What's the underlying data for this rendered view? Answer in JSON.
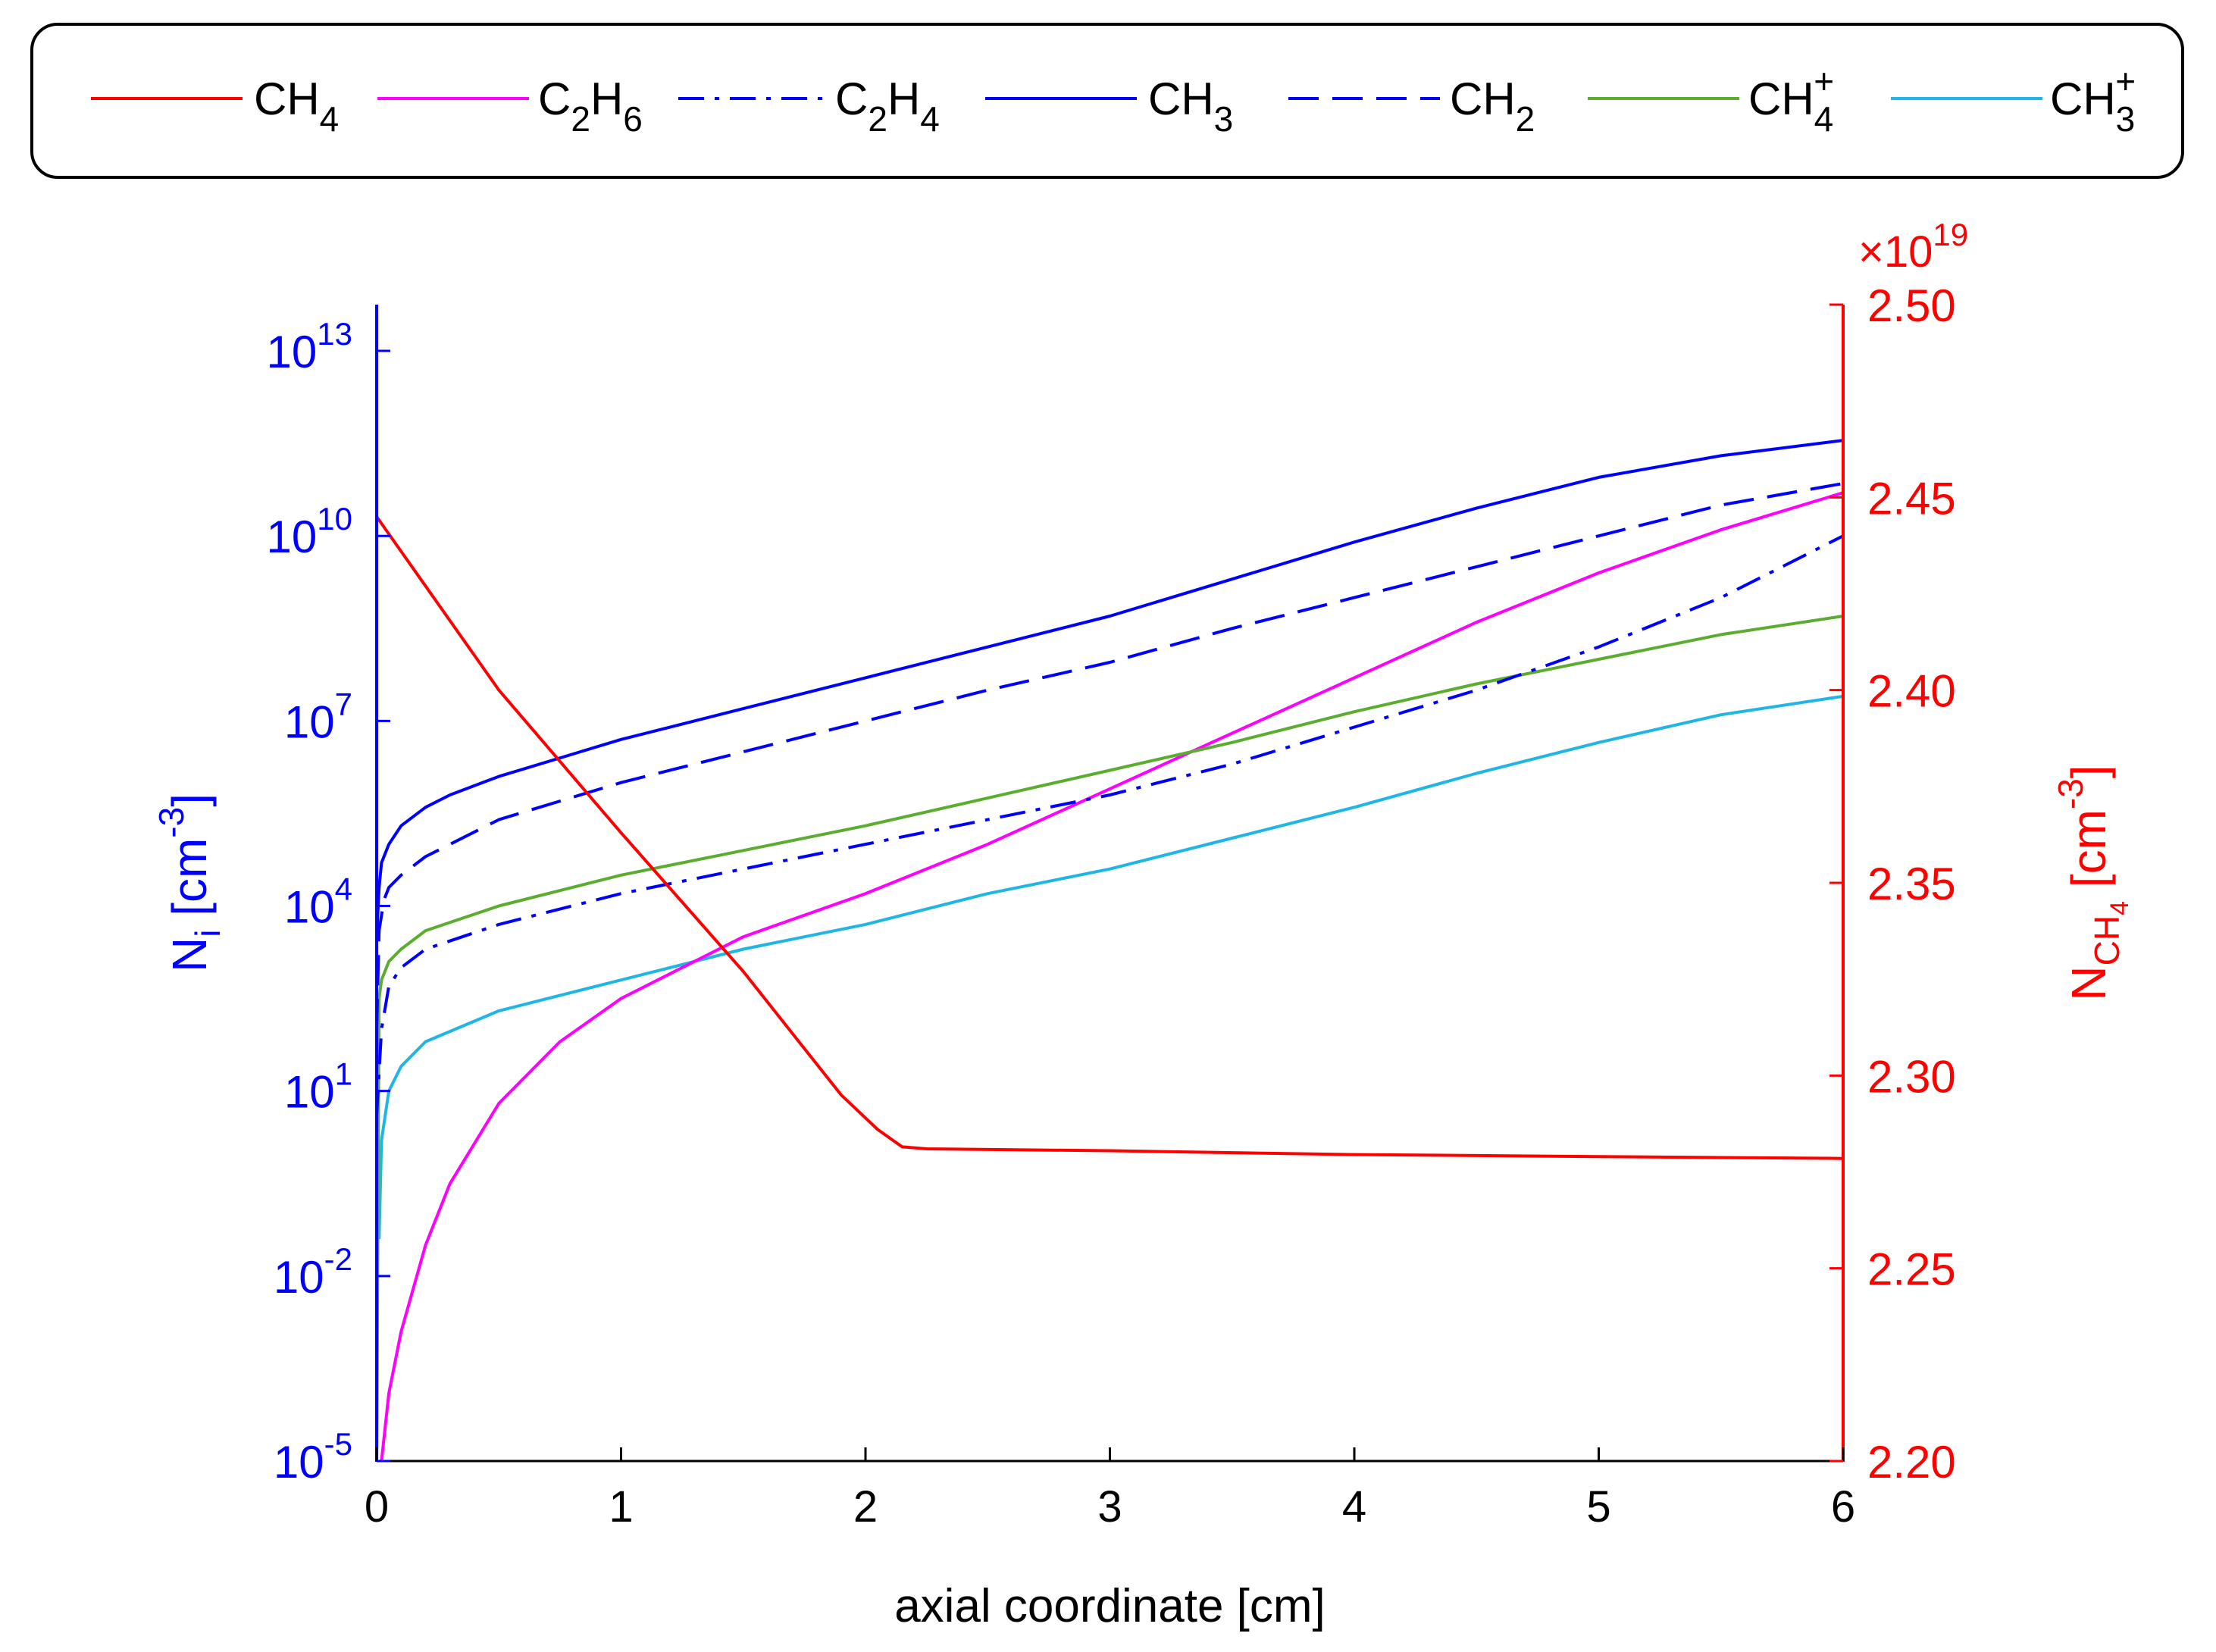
{
  "chart_data": {
    "type": "line",
    "xlabel": "axial coordinate [cm]",
    "xlim": [
      0,
      6
    ],
    "x_ticks": [
      0,
      1,
      2,
      3,
      4,
      5,
      6
    ],
    "x_tick_labels": [
      "0",
      "1",
      "2",
      "3",
      "4",
      "5",
      "6"
    ],
    "left_axis": {
      "scale": "log",
      "label_main": "N",
      "label_sub": "i",
      "label_unit": " [cm",
      "label_sup": "-3",
      "label_close": "]",
      "color": "#0000ff",
      "ylim_exp": [
        -5,
        13.75
      ],
      "tick_exponents": [
        -5,
        -2,
        1,
        4,
        7,
        10,
        13
      ],
      "tick_base": "10",
      "tick_exp_labels": [
        "-5",
        "-2",
        "1",
        "4",
        "7",
        "10",
        "13"
      ]
    },
    "right_axis": {
      "scale": "linear",
      "label_main": "N",
      "label_sub": "CH",
      "label_subsub": "4",
      "label_unit": " [cm",
      "label_sup": "-3",
      "label_close": "]",
      "color": "#ff0000",
      "ylim": [
        2.2,
        2.5
      ],
      "ticks": [
        2.2,
        2.25,
        2.3,
        2.35,
        2.4,
        2.45,
        2.5
      ],
      "tick_labels": [
        "2.20",
        "2.25",
        "2.30",
        "2.35",
        "2.40",
        "2.45",
        "2.50"
      ],
      "multiplier_prefix": "×10",
      "multiplier_exp": "19"
    },
    "legend": {
      "position": "top",
      "entries": [
        {
          "key": "CH4",
          "base": "CH",
          "sub": "4",
          "sup": ""
        },
        {
          "key": "C2H6",
          "parts": [
            "C",
            "2",
            "H",
            "6"
          ]
        },
        {
          "key": "C2H4",
          "parts": [
            "C",
            "2",
            "H",
            "4"
          ]
        },
        {
          "key": "CH3",
          "base": "CH",
          "sub": "3",
          "sup": ""
        },
        {
          "key": "CH2",
          "base": "CH",
          "sub": "2",
          "sup": ""
        },
        {
          "key": "CH4+",
          "base": "CH",
          "sub": "4",
          "sup": "+"
        },
        {
          "key": "CH3+",
          "base": "CH",
          "sub": "3",
          "sup": "+"
        }
      ]
    },
    "series": [
      {
        "name": "CH4",
        "axis": "right",
        "color": "#ff0000",
        "dash": "solid",
        "points": [
          [
            0,
            2.445
          ],
          [
            0.5,
            2.4
          ],
          [
            1,
            2.363
          ],
          [
            1.5,
            2.327
          ],
          [
            1.9,
            2.295
          ],
          [
            2.05,
            2.286
          ],
          [
            2.15,
            2.2815
          ],
          [
            2.25,
            2.281
          ],
          [
            3,
            2.2805
          ],
          [
            4,
            2.2795
          ],
          [
            5,
            2.279
          ],
          [
            6,
            2.2785
          ]
        ]
      },
      {
        "name": "C2H6",
        "axis": "left",
        "color": "#ff00ff",
        "dash": "solid",
        "points": [
          [
            0.02,
            -5
          ],
          [
            0.05,
            -3.9
          ],
          [
            0.1,
            -2.9
          ],
          [
            0.2,
            -1.5
          ],
          [
            0.3,
            -0.5
          ],
          [
            0.5,
            0.8
          ],
          [
            0.75,
            1.8
          ],
          [
            1,
            2.5
          ],
          [
            1.5,
            3.5
          ],
          [
            2,
            4.2
          ],
          [
            2.5,
            5.0
          ],
          [
            3,
            5.9
          ],
          [
            3.5,
            6.8
          ],
          [
            4,
            7.7
          ],
          [
            4.5,
            8.6
          ],
          [
            5,
            9.4
          ],
          [
            5.5,
            10.1
          ],
          [
            6,
            10.7
          ]
        ]
      },
      {
        "name": "C2H4",
        "axis": "left",
        "color": "#0000ff",
        "dash": "dashdot",
        "points": [
          [
            0,
            0.6
          ],
          [
            0.02,
            2.0
          ],
          [
            0.05,
            2.7
          ],
          [
            0.1,
            3.0
          ],
          [
            0.2,
            3.3
          ],
          [
            0.5,
            3.7
          ],
          [
            1,
            4.2
          ],
          [
            1.5,
            4.6
          ],
          [
            2,
            5.0
          ],
          [
            2.5,
            5.4
          ],
          [
            3,
            5.8
          ],
          [
            3.5,
            6.3
          ],
          [
            4,
            6.9
          ],
          [
            4.5,
            7.5
          ],
          [
            5,
            8.2
          ],
          [
            5.5,
            9.0
          ],
          [
            6,
            10.0
          ]
        ]
      },
      {
        "name": "CH3",
        "axis": "left",
        "color": "#0000ff",
        "dash": "solid",
        "points": [
          [
            0,
            3.5
          ],
          [
            0.01,
            4.3
          ],
          [
            0.02,
            4.7
          ],
          [
            0.05,
            5.0
          ],
          [
            0.1,
            5.3
          ],
          [
            0.2,
            5.6
          ],
          [
            0.3,
            5.8
          ],
          [
            0.5,
            6.1
          ],
          [
            1,
            6.7
          ],
          [
            1.5,
            7.2
          ],
          [
            2,
            7.7
          ],
          [
            2.5,
            8.2
          ],
          [
            3,
            8.7
          ],
          [
            3.5,
            9.3
          ],
          [
            4,
            9.9
          ],
          [
            4.5,
            10.45
          ],
          [
            5,
            10.95
          ],
          [
            5.5,
            11.3
          ],
          [
            6,
            11.55
          ]
        ]
      },
      {
        "name": "CH2",
        "axis": "left",
        "color": "#0000ff",
        "dash": "dashed",
        "points": [
          [
            0,
            2.0
          ],
          [
            0.01,
            3.6
          ],
          [
            0.03,
            4.1
          ],
          [
            0.05,
            4.3
          ],
          [
            0.1,
            4.5
          ],
          [
            0.2,
            4.8
          ],
          [
            0.3,
            5.0
          ],
          [
            0.5,
            5.4
          ],
          [
            1,
            6.0
          ],
          [
            1.5,
            6.5
          ],
          [
            2,
            7.0
          ],
          [
            2.5,
            7.5
          ],
          [
            3,
            7.95
          ],
          [
            3.5,
            8.5
          ],
          [
            4,
            9.0
          ],
          [
            4.5,
            9.5
          ],
          [
            5,
            10.0
          ],
          [
            5.5,
            10.5
          ],
          [
            6,
            10.85
          ]
        ]
      },
      {
        "name": "CH4+",
        "axis": "left",
        "color": "#5aad2e",
        "dash": "solid",
        "points": [
          [
            0,
            -5
          ],
          [
            0.01,
            2.5
          ],
          [
            0.02,
            2.8
          ],
          [
            0.05,
            3.1
          ],
          [
            0.1,
            3.3
          ],
          [
            0.2,
            3.6
          ],
          [
            0.5,
            4.0
          ],
          [
            1,
            4.5
          ],
          [
            1.5,
            4.9
          ],
          [
            2,
            5.3
          ],
          [
            2.5,
            5.75
          ],
          [
            3,
            6.2
          ],
          [
            3.5,
            6.65
          ],
          [
            4,
            7.15
          ],
          [
            4.5,
            7.6
          ],
          [
            5,
            8.0
          ],
          [
            5.5,
            8.4
          ],
          [
            6,
            8.7
          ]
        ]
      },
      {
        "name": "CH3+",
        "axis": "left",
        "color": "#1fb6e6",
        "dash": "solid",
        "points": [
          [
            0.01,
            -1.4
          ],
          [
            0.02,
            0.2
          ],
          [
            0.05,
            1.0
          ],
          [
            0.1,
            1.4
          ],
          [
            0.2,
            1.8
          ],
          [
            0.5,
            2.3
          ],
          [
            1,
            2.8
          ],
          [
            1.5,
            3.3
          ],
          [
            2,
            3.7
          ],
          [
            2.5,
            4.2
          ],
          [
            3,
            4.6
          ],
          [
            3.5,
            5.1
          ],
          [
            4,
            5.6
          ],
          [
            4.5,
            6.15
          ],
          [
            5,
            6.65
          ],
          [
            5.5,
            7.1
          ],
          [
            6,
            7.4
          ]
        ]
      }
    ]
  }
}
